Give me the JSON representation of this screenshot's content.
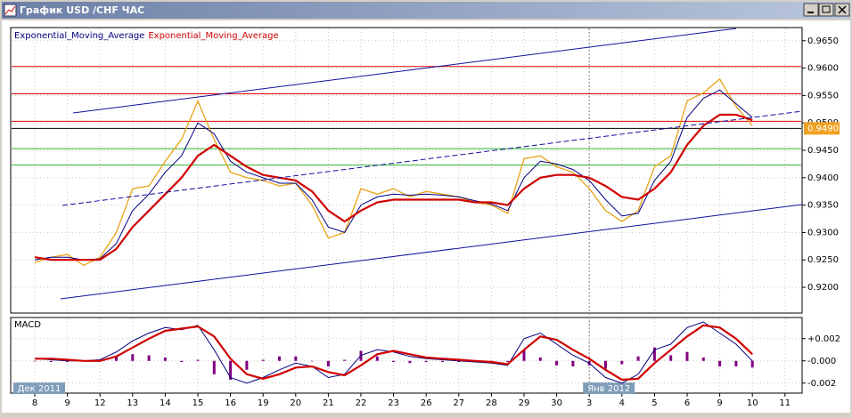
{
  "window": {
    "title": "График USD /CHF ЧАС"
  },
  "chart_data": {
    "type": "line",
    "categories": [
      "8",
      null,
      "9",
      null,
      "12",
      null,
      "13",
      null,
      "14",
      null,
      "15",
      null,
      "16",
      null,
      "19",
      null,
      "20",
      null,
      "21",
      null,
      "22",
      null,
      "23",
      null,
      "26",
      null,
      "27",
      null,
      "28",
      null,
      "29",
      null,
      "30",
      null,
      "3",
      null,
      "4",
      null,
      "5",
      null,
      "6",
      null,
      "9",
      null,
      "10",
      null,
      "11"
    ],
    "period_labels": [
      {
        "label": "Дек 2011",
        "at": 0
      },
      {
        "label": "Янв 2012",
        "at": 34
      }
    ],
    "ylim": [
      0.9153,
      0.9674
    ],
    "yticks": [
      {
        "value": 0.92,
        "label": "0.9200"
      },
      {
        "value": 0.925,
        "label": "0.9250"
      },
      {
        "value": 0.93,
        "label": "0.9300"
      },
      {
        "value": 0.935,
        "label": "0.9350"
      },
      {
        "value": 0.94,
        "label": "0.9400"
      },
      {
        "value": 0.945,
        "label": "0.9450"
      },
      {
        "value": 0.95,
        "label": "0.9500"
      },
      {
        "value": 0.955,
        "label": "0.9550"
      },
      {
        "value": 0.96,
        "label": "0.9600"
      },
      {
        "value": 0.965,
        "label": "0.9650"
      }
    ],
    "grid": true,
    "levels": [
      {
        "value": 0.9603,
        "color": "#e00000"
      },
      {
        "value": 0.9553,
        "color": "#e00000"
      },
      {
        "value": 0.9503,
        "color": "#e00000"
      },
      {
        "value": 0.949,
        "color": "#000000"
      },
      {
        "value": 0.9453,
        "color": "#33b533"
      },
      {
        "value": 0.9423,
        "color": "#33b533"
      }
    ],
    "last_price": {
      "value": 0.949,
      "label": "0.9490",
      "color": "#f0a020"
    },
    "series": [
      {
        "color": "#e8a317",
        "width": 1.3,
        "values": [
          0.9245,
          0.9255,
          0.926,
          0.924,
          0.9255,
          0.93,
          0.938,
          0.9385,
          0.943,
          0.947,
          0.954,
          0.947,
          0.941,
          0.94,
          0.9395,
          0.9385,
          0.939,
          0.935,
          0.929,
          0.93,
          0.938,
          0.937,
          0.938,
          0.9365,
          0.9375,
          0.937,
          0.9365,
          0.9355,
          0.935,
          0.9335,
          0.9435,
          0.944,
          0.942,
          0.941,
          0.938,
          0.934,
          0.932,
          0.934,
          0.942,
          0.944,
          0.954,
          0.9555,
          0.958,
          0.953,
          0.9495,
          null,
          null
        ]
      },
      {
        "name": "Exponential_Moving_Average",
        "color": "#000080",
        "width": 1,
        "values": [
          0.925,
          0.9255,
          0.9255,
          0.925,
          0.9252,
          0.928,
          0.934,
          0.937,
          0.941,
          0.944,
          0.95,
          0.948,
          0.943,
          0.941,
          0.94,
          0.939,
          0.939,
          0.936,
          0.931,
          0.93,
          0.935,
          0.9365,
          0.937,
          0.9368,
          0.937,
          0.9368,
          0.9365,
          0.9358,
          0.9352,
          0.934,
          0.94,
          0.943,
          0.9425,
          0.9415,
          0.9395,
          0.936,
          0.933,
          0.9335,
          0.9395,
          0.943,
          0.951,
          0.9545,
          0.956,
          0.9535,
          0.951,
          null,
          null
        ]
      },
      {
        "name": "Exponential_Moving_Average",
        "color": "#d00000",
        "width": 2.2,
        "values": [
          0.9255,
          0.925,
          0.925,
          0.925,
          0.925,
          0.927,
          0.931,
          0.934,
          0.937,
          0.94,
          0.944,
          0.946,
          0.944,
          0.942,
          0.9405,
          0.94,
          0.9395,
          0.9375,
          0.934,
          0.932,
          0.934,
          0.9355,
          0.936,
          0.936,
          0.936,
          0.936,
          0.936,
          0.9355,
          0.9355,
          0.935,
          0.938,
          0.94,
          0.9405,
          0.9405,
          0.94,
          0.9385,
          0.9365,
          0.936,
          0.938,
          0.941,
          0.946,
          0.9495,
          0.9515,
          0.9515,
          0.9505,
          null,
          null
        ]
      }
    ],
    "indicator": {
      "title": "MACD",
      "ylim": [
        -0.0029,
        0.0039
      ],
      "yticks": [
        {
          "value": 0.002,
          "label": "+0.002"
        },
        {
          "value": 0,
          "label": "-0.000"
        },
        {
          "value": -0.002,
          "label": "-0.002"
        }
      ],
      "series": [
        {
          "type": "bar",
          "color": "#800080",
          "values": [
            0,
            -0.0001,
            -0.0001,
            0,
            0.0001,
            0.0004,
            0.0006,
            0.0005,
            0.0003,
            -0.0001,
            0.0001,
            -0.0012,
            -0.0017,
            -0.0008,
            0.0001,
            0.0004,
            0.0004,
            0,
            -0.0005,
            0.0001,
            0.0009,
            0.0004,
            -0.0001,
            -0.0002,
            -0.0001,
            -0.0001,
            -0.0001,
            -0.0001,
            -0.0001,
            -0.0001,
            0.001,
            0.0003,
            -0.0004,
            -0.0005,
            -0.0004,
            -0.0007,
            -0.0003,
            0.0004,
            0.0012,
            0.0005,
            0.0008,
            0.0003,
            -0.0005,
            -0.0005,
            -0.0006,
            null,
            null
          ]
        },
        {
          "type": "line",
          "color": "#000080",
          "width": 1,
          "values": [
            0.0002,
            0.0001,
            0,
            0,
            0.0001,
            0.0008,
            0.0018,
            0.0025,
            0.003,
            0.0028,
            0.0032,
            0.001,
            -0.0015,
            -0.002,
            -0.0015,
            -0.0008,
            -0.0002,
            -0.0005,
            -0.0015,
            -0.0012,
            0.0005,
            0.001,
            0.0008,
            0.0004,
            0.0002,
            0.0001,
            0,
            -0.0001,
            -0.0002,
            -0.0004,
            0.002,
            0.0025,
            0.0015,
            0.0005,
            -0.0002,
            -0.0015,
            -0.002,
            -0.0012,
            0.001,
            0.0015,
            0.003,
            0.0035,
            0.0025,
            0.0015,
            0,
            null,
            null
          ]
        },
        {
          "type": "line",
          "color": "#d00000",
          "width": 2.2,
          "values": [
            0.0002,
            0.0002,
            0.0001,
            0,
            0,
            0.0004,
            0.0012,
            0.002,
            0.0027,
            0.0029,
            0.0031,
            0.0022,
            0.0002,
            -0.0012,
            -0.0016,
            -0.0012,
            -0.0006,
            -0.0005,
            -0.001,
            -0.0013,
            -0.0004,
            0.0006,
            0.0009,
            0.0006,
            0.0003,
            0.0002,
            0.0001,
            0,
            -0.0001,
            -0.0003,
            0.001,
            0.0022,
            0.0019,
            0.001,
            0.0002,
            -0.0008,
            -0.0017,
            -0.0016,
            -0.0002,
            0.001,
            0.0022,
            0.0032,
            0.003,
            0.002,
            0.0006,
            null,
            null
          ]
        }
      ]
    }
  }
}
